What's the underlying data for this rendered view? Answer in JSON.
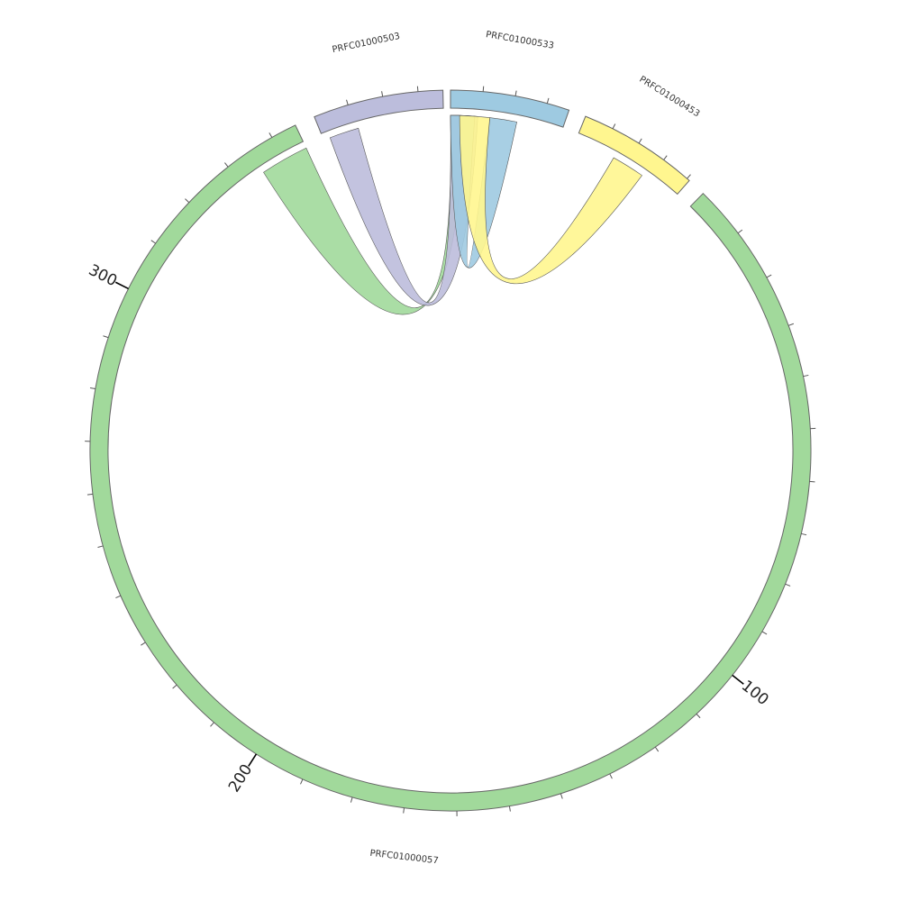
{
  "chart_data": {
    "type": "chord",
    "segments": [
      {
        "id": "PRFC01000057",
        "label": "PRFC01000057",
        "color": "#A1D99B",
        "start": 0,
        "end": 345
      },
      {
        "id": "PRFC01000503",
        "label": "PRFC01000503",
        "color": "#BCBDDC",
        "start": 0,
        "end": 37
      },
      {
        "id": "PRFC01000533",
        "label": "PRFC01000533",
        "color": "#9ECAE1",
        "start": 0,
        "end": 37
      },
      {
        "id": "PRFC01000453",
        "label": "PRFC01000453",
        "color": "#FFF68F",
        "start": 0,
        "end": 41
      }
    ],
    "major_ticks": [
      {
        "segment": "PRFC01000057",
        "position": 100,
        "label": "100"
      },
      {
        "segment": "PRFC01000057",
        "position": 200,
        "label": "200"
      },
      {
        "segment": "PRFC01000057",
        "position": 300,
        "label": "300"
      }
    ],
    "links": [
      {
        "color": "#A1D99B",
        "source": {
          "segment": "PRFC01000057",
          "start": 335,
          "end": 345
        },
        "target": {
          "segment": "PRFC01000533",
          "start": 0,
          "end": 4
        }
      },
      {
        "color": "#BCBDDC",
        "source": {
          "segment": "PRFC01000503",
          "start": 2,
          "end": 11
        },
        "target": {
          "segment": "PRFC01000533",
          "start": 0,
          "end": 9
        }
      },
      {
        "color": "#9ECAE1",
        "source": {
          "segment": "PRFC01000533",
          "start": 13,
          "end": 22
        },
        "target": {
          "segment": "PRFC01000533",
          "start": 0,
          "end": 8
        }
      },
      {
        "color": "#FFF68F",
        "source": {
          "segment": "PRFC01000453",
          "start": 15,
          "end": 27
        },
        "target": {
          "segment": "PRFC01000533",
          "start": 3,
          "end": 13
        }
      }
    ]
  }
}
